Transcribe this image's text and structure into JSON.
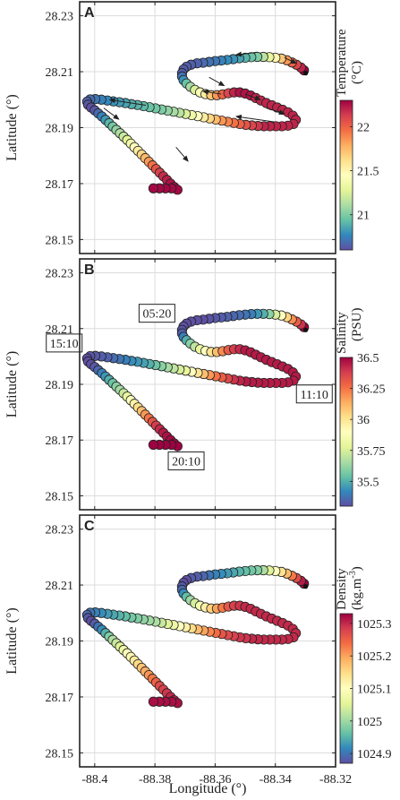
{
  "x_axis_label": "Longitude (°)",
  "y_axis_label": "Latitude (°)",
  "chart_data": [
    {
      "type": "scatter",
      "panel": "A",
      "xlabel": "",
      "ylabel": "Latitude (°)",
      "xlim": [
        -88.405,
        -88.32
      ],
      "ylim": [
        28.145,
        28.235
      ],
      "x_ticks": [
        -88.4,
        -88.38,
        -88.36,
        -88.34,
        -88.32
      ],
      "y_ticks": [
        28.15,
        28.17,
        28.19,
        28.21,
        28.23
      ],
      "y_tick_labels": [
        "28.15",
        "28.17",
        "28.19",
        "28.21",
        "28.23"
      ],
      "grid": true,
      "track": "ship-track",
      "colorbar": {
        "label": "Temperature (°C)",
        "label_lines": [
          "Temperature",
          "(°C)"
        ],
        "range": [
          20.6,
          22.3
        ],
        "ticks": [
          21,
          21.5,
          22
        ],
        "tick_labels": [
          "21",
          "21.5",
          "22"
        ],
        "colormap": "rainbow-blue-to-red"
      },
      "arrows": [
        {
          "from": [
            -88.373,
            28.183
          ],
          "to": [
            -88.369,
            28.178
          ]
        },
        {
          "from": [
            -88.397,
            28.197
          ],
          "to": [
            -88.392,
            28.193
          ]
        },
        {
          "from": [
            -88.383,
            28.198
          ],
          "to": [
            -88.395,
            28.2
          ]
        },
        {
          "from": [
            -88.34,
            28.192
          ],
          "to": [
            -88.353,
            28.194
          ]
        },
        {
          "from": [
            -88.358,
            28.202
          ],
          "to": [
            -88.364,
            28.203
          ]
        },
        {
          "from": [
            -88.35,
            28.202
          ],
          "to": [
            -88.345,
            28.2
          ]
        },
        {
          "from": [
            -88.343,
            28.197
          ],
          "to": [
            -88.337,
            28.195
          ]
        },
        {
          "from": [
            -88.362,
            28.208
          ],
          "to": [
            -88.357,
            28.205
          ]
        },
        {
          "from": [
            -88.337,
            28.215
          ],
          "to": [
            -88.333,
            28.213
          ]
        },
        {
          "from": [
            -88.346,
            28.217
          ],
          "to": [
            -88.353,
            28.216
          ]
        }
      ]
    },
    {
      "type": "scatter",
      "panel": "B",
      "xlabel": "",
      "ylabel": "Latitude (°)",
      "xlim": [
        -88.405,
        -88.32
      ],
      "ylim": [
        28.145,
        28.235
      ],
      "x_ticks": [
        -88.4,
        -88.38,
        -88.36,
        -88.34,
        -88.32
      ],
      "y_ticks": [
        28.15,
        28.17,
        28.19,
        28.21,
        28.23
      ],
      "y_tick_labels": [
        "28.15",
        "28.17",
        "28.19",
        "28.21",
        "28.23"
      ],
      "grid": true,
      "track": "ship-track",
      "colorbar": {
        "label": "Salinity (PSU)",
        "label_lines": [
          "Salinity",
          "(PSU)"
        ],
        "range": [
          35.3,
          36.5
        ],
        "ticks": [
          35.5,
          35.75,
          36,
          36.25,
          36.5
        ],
        "tick_labels": [
          "35.5",
          "35.75",
          "36",
          "36.25",
          "36.5"
        ],
        "colormap": "rainbow-blue-to-red"
      },
      "time_labels": [
        {
          "text": "05:20",
          "at": [
            -88.371,
            28.211
          ]
        },
        {
          "text": "15:10",
          "at": [
            -88.403,
            28.2
          ]
        },
        {
          "text": "11:10",
          "at": [
            -88.333,
            28.192
          ]
        },
        {
          "text": "20:10",
          "at": [
            -88.372,
            28.168
          ]
        }
      ]
    },
    {
      "type": "scatter",
      "panel": "C",
      "xlabel": "Longitude (°)",
      "ylabel": "Latitude (°)",
      "xlim": [
        -88.405,
        -88.32
      ],
      "ylim": [
        28.145,
        28.235
      ],
      "x_ticks": [
        -88.4,
        -88.38,
        -88.36,
        -88.34,
        -88.32
      ],
      "x_tick_labels": [
        "-88.4",
        "-88.38",
        "-88.36",
        "-88.34",
        "-88.32"
      ],
      "y_ticks": [
        28.15,
        28.17,
        28.19,
        28.21,
        28.23
      ],
      "y_tick_labels": [
        "28.15",
        "28.17",
        "28.19",
        "28.21",
        "28.23"
      ],
      "grid": true,
      "track": "ship-track",
      "colorbar": {
        "label": "Density (kg.m-3)",
        "label_lines": [
          "Density",
          "(kg.m",
          "-3",
          ")"
        ],
        "range": [
          1024.87,
          1025.33
        ],
        "ticks": [
          1024.9,
          1025,
          1025.1,
          1025.2,
          1025.3
        ],
        "tick_labels": [
          "1024.9",
          "1025",
          "1025.1",
          "1025.2",
          "1025.3"
        ],
        "colormap": "rainbow-blue-to-red"
      }
    }
  ],
  "tracks": {
    "ship-track": [
      {
        "x": -88.3305,
        "y": 28.2105,
        "t": 22.3,
        "s": 36.5,
        "d": 1025.33
      },
      {
        "x": -88.3315,
        "y": 28.2115,
        "t": 22.2,
        "s": 36.4,
        "d": 1025.31
      },
      {
        "x": -88.333,
        "y": 28.2125,
        "t": 22.1,
        "s": 36.3,
        "d": 1025.27
      },
      {
        "x": -88.3345,
        "y": 28.2133,
        "t": 22.0,
        "s": 36.2,
        "d": 1025.23
      },
      {
        "x": -88.3362,
        "y": 28.2141,
        "t": 21.85,
        "s": 36.05,
        "d": 1025.18
      },
      {
        "x": -88.338,
        "y": 28.2147,
        "t": 21.7,
        "s": 35.9,
        "d": 1025.14
      },
      {
        "x": -88.34,
        "y": 28.215,
        "t": 21.5,
        "s": 35.75,
        "d": 1025.1
      },
      {
        "x": -88.342,
        "y": 28.2152,
        "t": 21.3,
        "s": 35.6,
        "d": 1025.05
      },
      {
        "x": -88.344,
        "y": 28.2153,
        "t": 21.15,
        "s": 35.5,
        "d": 1025.01
      },
      {
        "x": -88.346,
        "y": 28.2153,
        "t": 21.0,
        "s": 35.45,
        "d": 1024.98
      },
      {
        "x": -88.348,
        "y": 28.2152,
        "t": 20.95,
        "s": 35.4,
        "d": 1024.97
      },
      {
        "x": -88.35,
        "y": 28.215,
        "t": 20.9,
        "s": 35.38,
        "d": 1024.96
      },
      {
        "x": -88.352,
        "y": 28.2148,
        "t": 20.85,
        "s": 35.36,
        "d": 1024.95
      },
      {
        "x": -88.354,
        "y": 28.2145,
        "t": 20.8,
        "s": 35.35,
        "d": 1024.94
      },
      {
        "x": -88.356,
        "y": 28.2142,
        "t": 20.78,
        "s": 35.34,
        "d": 1024.93
      },
      {
        "x": -88.358,
        "y": 28.214,
        "t": 20.75,
        "s": 35.33,
        "d": 1024.92
      },
      {
        "x": -88.36,
        "y": 28.2138,
        "t": 20.72,
        "s": 35.32,
        "d": 1024.91
      },
      {
        "x": -88.362,
        "y": 28.2135,
        "t": 20.7,
        "s": 35.31,
        "d": 1024.9
      },
      {
        "x": -88.364,
        "y": 28.2132,
        "t": 20.68,
        "s": 35.3,
        "d": 1024.89
      },
      {
        "x": -88.366,
        "y": 28.213,
        "t": 20.66,
        "s": 35.3,
        "d": 1024.88
      },
      {
        "x": -88.368,
        "y": 28.2125,
        "t": 20.65,
        "s": 35.3,
        "d": 1024.88
      },
      {
        "x": -88.3695,
        "y": 28.2118,
        "t": 20.64,
        "s": 35.3,
        "d": 1024.87
      },
      {
        "x": -88.3705,
        "y": 28.2108,
        "t": 20.64,
        "s": 35.3,
        "d": 1024.87
      },
      {
        "x": -88.371,
        "y": 28.2095,
        "t": 20.65,
        "s": 35.31,
        "d": 1024.88
      },
      {
        "x": -88.371,
        "y": 28.2083,
        "t": 20.7,
        "s": 35.33,
        "d": 1024.89
      },
      {
        "x": -88.3705,
        "y": 28.207,
        "t": 20.8,
        "s": 35.4,
        "d": 1024.92
      },
      {
        "x": -88.3695,
        "y": 28.2058,
        "t": 20.95,
        "s": 35.5,
        "d": 1024.96
      },
      {
        "x": -88.3682,
        "y": 28.2046,
        "t": 21.1,
        "s": 35.6,
        "d": 1025.0
      },
      {
        "x": -88.3667,
        "y": 28.2035,
        "t": 21.25,
        "s": 35.7,
        "d": 1025.04
      },
      {
        "x": -88.365,
        "y": 28.2026,
        "t": 21.4,
        "s": 35.8,
        "d": 1025.08
      },
      {
        "x": -88.3632,
        "y": 28.202,
        "t": 21.55,
        "s": 35.9,
        "d": 1025.12
      },
      {
        "x": -88.3613,
        "y": 28.2016,
        "t": 21.7,
        "s": 36.0,
        "d": 1025.16
      },
      {
        "x": -88.3594,
        "y": 28.2016,
        "t": 21.85,
        "s": 36.1,
        "d": 1025.2
      },
      {
        "x": -88.3575,
        "y": 28.2019,
        "t": 22.0,
        "s": 36.2,
        "d": 1025.23
      },
      {
        "x": -88.3556,
        "y": 28.2023,
        "t": 22.1,
        "s": 36.3,
        "d": 1025.26
      },
      {
        "x": -88.3537,
        "y": 28.2026,
        "t": 22.2,
        "s": 36.38,
        "d": 1025.28
      },
      {
        "x": -88.3518,
        "y": 28.2026,
        "t": 22.25,
        "s": 36.42,
        "d": 1025.29
      },
      {
        "x": -88.35,
        "y": 28.2022,
        "t": 22.25,
        "s": 36.45,
        "d": 1025.3
      },
      {
        "x": -88.3482,
        "y": 28.2015,
        "t": 22.25,
        "s": 36.45,
        "d": 1025.3
      },
      {
        "x": -88.3465,
        "y": 28.2006,
        "t": 22.2,
        "s": 36.45,
        "d": 1025.3
      },
      {
        "x": -88.3448,
        "y": 28.1997,
        "t": 22.2,
        "s": 36.45,
        "d": 1025.3
      },
      {
        "x": -88.343,
        "y": 28.1988,
        "t": 22.2,
        "s": 36.45,
        "d": 1025.3
      },
      {
        "x": -88.3412,
        "y": 28.198,
        "t": 22.2,
        "s": 36.45,
        "d": 1025.3
      },
      {
        "x": -88.3394,
        "y": 28.1972,
        "t": 22.2,
        "s": 36.45,
        "d": 1025.3
      },
      {
        "x": -88.3376,
        "y": 28.1964,
        "t": 22.2,
        "s": 36.45,
        "d": 1025.3
      },
      {
        "x": -88.3358,
        "y": 28.1955,
        "t": 22.2,
        "s": 36.45,
        "d": 1025.3
      },
      {
        "x": -88.3342,
        "y": 28.1943,
        "t": 22.2,
        "s": 36.45,
        "d": 1025.3
      },
      {
        "x": -88.3332,
        "y": 28.1928,
        "t": 22.2,
        "s": 36.45,
        "d": 1025.3
      },
      {
        "x": -88.334,
        "y": 28.1913,
        "t": 22.2,
        "s": 36.45,
        "d": 1025.3
      },
      {
        "x": -88.3358,
        "y": 28.1907,
        "t": 22.2,
        "s": 36.45,
        "d": 1025.3
      },
      {
        "x": -88.3378,
        "y": 28.1905,
        "t": 22.2,
        "s": 36.45,
        "d": 1025.3
      },
      {
        "x": -88.3398,
        "y": 28.1905,
        "t": 22.2,
        "s": 36.45,
        "d": 1025.3
      },
      {
        "x": -88.3418,
        "y": 28.1905,
        "t": 22.2,
        "s": 36.45,
        "d": 1025.3
      },
      {
        "x": -88.3438,
        "y": 28.1905,
        "t": 22.2,
        "s": 36.45,
        "d": 1025.3
      },
      {
        "x": -88.3458,
        "y": 28.1906,
        "t": 22.15,
        "s": 36.45,
        "d": 1025.3
      },
      {
        "x": -88.3478,
        "y": 28.1908,
        "t": 22.1,
        "s": 36.45,
        "d": 1025.3
      },
      {
        "x": -88.3498,
        "y": 28.191,
        "t": 22.05,
        "s": 36.45,
        "d": 1025.29
      },
      {
        "x": -88.3518,
        "y": 28.1913,
        "t": 22.0,
        "s": 36.43,
        "d": 1025.29
      },
      {
        "x": -88.3538,
        "y": 28.1917,
        "t": 21.95,
        "s": 36.4,
        "d": 1025.28
      },
      {
        "x": -88.3558,
        "y": 28.1921,
        "t": 21.9,
        "s": 36.35,
        "d": 1025.27
      },
      {
        "x": -88.3578,
        "y": 28.1925,
        "t": 21.85,
        "s": 36.3,
        "d": 1025.26
      },
      {
        "x": -88.3598,
        "y": 28.1929,
        "t": 21.75,
        "s": 36.25,
        "d": 1025.24
      },
      {
        "x": -88.3618,
        "y": 28.1933,
        "t": 21.65,
        "s": 36.18,
        "d": 1025.22
      },
      {
        "x": -88.3638,
        "y": 28.1937,
        "t": 21.55,
        "s": 36.1,
        "d": 1025.2
      },
      {
        "x": -88.3658,
        "y": 28.1941,
        "t": 21.45,
        "s": 36.0,
        "d": 1025.18
      },
      {
        "x": -88.3678,
        "y": 28.1945,
        "t": 21.35,
        "s": 35.9,
        "d": 1025.15
      },
      {
        "x": -88.3698,
        "y": 28.1949,
        "t": 21.25,
        "s": 35.8,
        "d": 1025.12
      },
      {
        "x": -88.3718,
        "y": 28.1953,
        "t": 21.15,
        "s": 35.75,
        "d": 1025.1
      },
      {
        "x": -88.3738,
        "y": 28.1957,
        "t": 21.1,
        "s": 35.7,
        "d": 1025.07
      },
      {
        "x": -88.3758,
        "y": 28.1961,
        "t": 21.05,
        "s": 35.65,
        "d": 1025.05
      },
      {
        "x": -88.3778,
        "y": 28.1965,
        "t": 21.0,
        "s": 35.6,
        "d": 1025.03
      },
      {
        "x": -88.3798,
        "y": 28.1969,
        "t": 20.97,
        "s": 35.55,
        "d": 1025.01
      },
      {
        "x": -88.3818,
        "y": 28.1973,
        "t": 20.95,
        "s": 35.5,
        "d": 1025.0
      },
      {
        "x": -88.3838,
        "y": 28.1977,
        "t": 20.92,
        "s": 35.47,
        "d": 1024.99
      },
      {
        "x": -88.3858,
        "y": 28.1981,
        "t": 20.9,
        "s": 35.45,
        "d": 1024.98
      },
      {
        "x": -88.3878,
        "y": 28.1984,
        "t": 20.88,
        "s": 35.43,
        "d": 1024.97
      },
      {
        "x": -88.3898,
        "y": 28.1988,
        "t": 20.85,
        "s": 35.4,
        "d": 1024.96
      },
      {
        "x": -88.3918,
        "y": 28.1991,
        "t": 20.83,
        "s": 35.38,
        "d": 1024.95
      },
      {
        "x": -88.3938,
        "y": 28.1994,
        "t": 20.8,
        "s": 35.36,
        "d": 1024.94
      },
      {
        "x": -88.3958,
        "y": 28.1997,
        "t": 20.77,
        "s": 35.34,
        "d": 1024.93
      },
      {
        "x": -88.3978,
        "y": 28.2,
        "t": 20.75,
        "s": 35.33,
        "d": 1024.92
      },
      {
        "x": -88.3998,
        "y": 28.2002,
        "t": 20.72,
        "s": 35.32,
        "d": 1024.91
      },
      {
        "x": -88.4015,
        "y": 28.2001,
        "t": 20.68,
        "s": 35.31,
        "d": 1024.9
      },
      {
        "x": -88.4025,
        "y": 28.1993,
        "t": 20.65,
        "s": 35.3,
        "d": 1024.89
      },
      {
        "x": -88.4022,
        "y": 28.1982,
        "t": 20.62,
        "s": 35.3,
        "d": 1024.88
      },
      {
        "x": -88.4012,
        "y": 28.1972,
        "t": 20.6,
        "s": 35.3,
        "d": 1024.87
      },
      {
        "x": -88.4,
        "y": 28.1962,
        "t": 20.62,
        "s": 35.32,
        "d": 1024.88
      },
      {
        "x": -88.3988,
        "y": 28.1951,
        "t": 20.68,
        "s": 35.35,
        "d": 1024.9
      },
      {
        "x": -88.3976,
        "y": 28.194,
        "t": 20.75,
        "s": 35.4,
        "d": 1024.92
      },
      {
        "x": -88.3964,
        "y": 28.1928,
        "t": 20.82,
        "s": 35.45,
        "d": 1024.95
      },
      {
        "x": -88.3952,
        "y": 28.1916,
        "t": 20.9,
        "s": 35.5,
        "d": 1024.98
      },
      {
        "x": -88.394,
        "y": 28.1904,
        "t": 20.98,
        "s": 35.55,
        "d": 1025.01
      },
      {
        "x": -88.3928,
        "y": 28.1892,
        "t": 21.05,
        "s": 35.6,
        "d": 1025.03
      },
      {
        "x": -88.3916,
        "y": 28.188,
        "t": 21.12,
        "s": 35.65,
        "d": 1025.05
      },
      {
        "x": -88.3904,
        "y": 28.1868,
        "t": 21.2,
        "s": 35.72,
        "d": 1025.07
      },
      {
        "x": -88.3892,
        "y": 28.1856,
        "t": 21.28,
        "s": 35.8,
        "d": 1025.09
      },
      {
        "x": -88.388,
        "y": 28.1843,
        "t": 21.36,
        "s": 35.88,
        "d": 1025.11
      },
      {
        "x": -88.3868,
        "y": 28.183,
        "t": 21.45,
        "s": 35.95,
        "d": 1025.13
      },
      {
        "x": -88.3856,
        "y": 28.1817,
        "t": 21.55,
        "s": 36.02,
        "d": 1025.15
      },
      {
        "x": -88.3844,
        "y": 28.1804,
        "t": 21.65,
        "s": 36.1,
        "d": 1025.17
      },
      {
        "x": -88.3832,
        "y": 28.1791,
        "t": 21.75,
        "s": 36.18,
        "d": 1025.19
      },
      {
        "x": -88.382,
        "y": 28.1778,
        "t": 21.85,
        "s": 36.25,
        "d": 1025.21
      },
      {
        "x": -88.3808,
        "y": 28.1765,
        "t": 21.95,
        "s": 36.32,
        "d": 1025.23
      },
      {
        "x": -88.3796,
        "y": 28.1752,
        "t": 22.05,
        "s": 36.38,
        "d": 1025.25
      },
      {
        "x": -88.3784,
        "y": 28.1739,
        "t": 22.12,
        "s": 36.42,
        "d": 1025.27
      },
      {
        "x": -88.3772,
        "y": 28.1726,
        "t": 22.18,
        "s": 36.45,
        "d": 1025.28
      },
      {
        "x": -88.376,
        "y": 28.1713,
        "t": 22.22,
        "s": 36.47,
        "d": 1025.29
      },
      {
        "x": -88.3748,
        "y": 28.17,
        "t": 22.25,
        "s": 36.48,
        "d": 1025.3
      },
      {
        "x": -88.3736,
        "y": 28.1688,
        "t": 22.27,
        "s": 36.49,
        "d": 1025.31
      },
      {
        "x": -88.3725,
        "y": 28.1678,
        "t": 22.28,
        "s": 36.5,
        "d": 1025.32
      },
      {
        "x": -88.3745,
        "y": 28.1683,
        "t": 22.28,
        "s": 36.5,
        "d": 1025.32
      },
      {
        "x": -88.3765,
        "y": 28.1683,
        "t": 22.28,
        "s": 36.5,
        "d": 1025.32
      },
      {
        "x": -88.3785,
        "y": 28.1683,
        "t": 22.28,
        "s": 36.5,
        "d": 1025.32
      },
      {
        "x": -88.3805,
        "y": 28.1683,
        "t": 22.28,
        "s": 36.5,
        "d": 1025.32
      }
    ]
  },
  "colormap": [
    "#5e4fa2",
    "#3288bd",
    "#66c2a5",
    "#abdda4",
    "#e6f598",
    "#ffffbf",
    "#fee08b",
    "#fdae61",
    "#f46d43",
    "#d53e4f",
    "#9e0142"
  ]
}
